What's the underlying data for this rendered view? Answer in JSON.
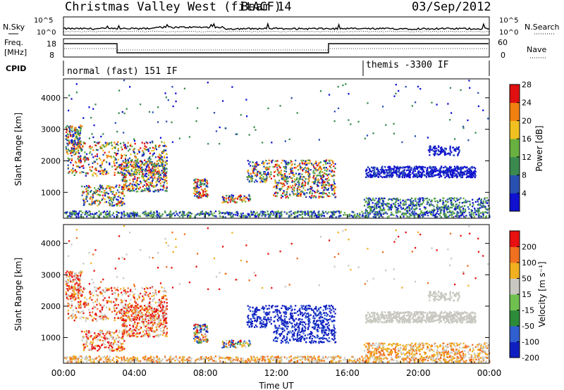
{
  "header": {
    "title": "Christmas Valley West (fitACF)",
    "beam": "Beam 14",
    "date": "03/Sep/2012"
  },
  "top_panels": {
    "nsky_label": "N.Sky",
    "nsearch_label": "N.Search",
    "noise_ticks": [
      "10^5",
      "10^0"
    ],
    "freq_label_1": "Freq.",
    "freq_label_2": "[MHz]",
    "freq_ticks": [
      "18",
      "8"
    ],
    "nave_label": "Nave",
    "nave_ticks": [
      "60",
      "0"
    ],
    "cpid_label": "CPID",
    "cpid_segments": [
      "normal (fast) 151 IF",
      "themis -3300 IF"
    ]
  },
  "chart_data": [
    {
      "type": "heatmap",
      "title": "",
      "ylabel": "Slant Range [km]",
      "xlabel": "",
      "xlim": [
        "00:00",
        "24:00"
      ],
      "ylim": [
        180,
        4600
      ],
      "y_ticks": [
        "1000",
        "2000",
        "3000",
        "4000"
      ],
      "colorbar_label": "Power [dB]",
      "colorbar_ticks": [
        "4",
        "8",
        "12",
        "16",
        "20",
        "24",
        "28"
      ],
      "colorbar_colors": [
        "#1010d0",
        "#2850b0",
        "#3a8a50",
        "#68b040",
        "#f0c020",
        "#f08010",
        "#e01010"
      ]
    },
    {
      "type": "heatmap",
      "title": "",
      "ylabel": "Slant Range [km]",
      "xlabel": "Time UT",
      "xlim": [
        "00:00",
        "24:00"
      ],
      "ylim": [
        180,
        4600
      ],
      "x_ticks": [
        "00:00",
        "04:00",
        "08:00",
        "12:00",
        "16:00",
        "20:00",
        "00:00"
      ],
      "y_ticks": [
        "1000",
        "2000",
        "3000",
        "4000"
      ],
      "colorbar_label": "Velocity [m s⁻¹]",
      "colorbar_ticks": [
        "200",
        "100",
        "50",
        "15",
        "-15",
        "-50",
        "-100",
        "-200"
      ],
      "colorbar_colors": [
        "#1020c0",
        "#3060d0",
        "#2e8b3a",
        "#70c050",
        "#c8c8c0",
        "#f0b020",
        "#f07020",
        "#e81010"
      ]
    }
  ]
}
